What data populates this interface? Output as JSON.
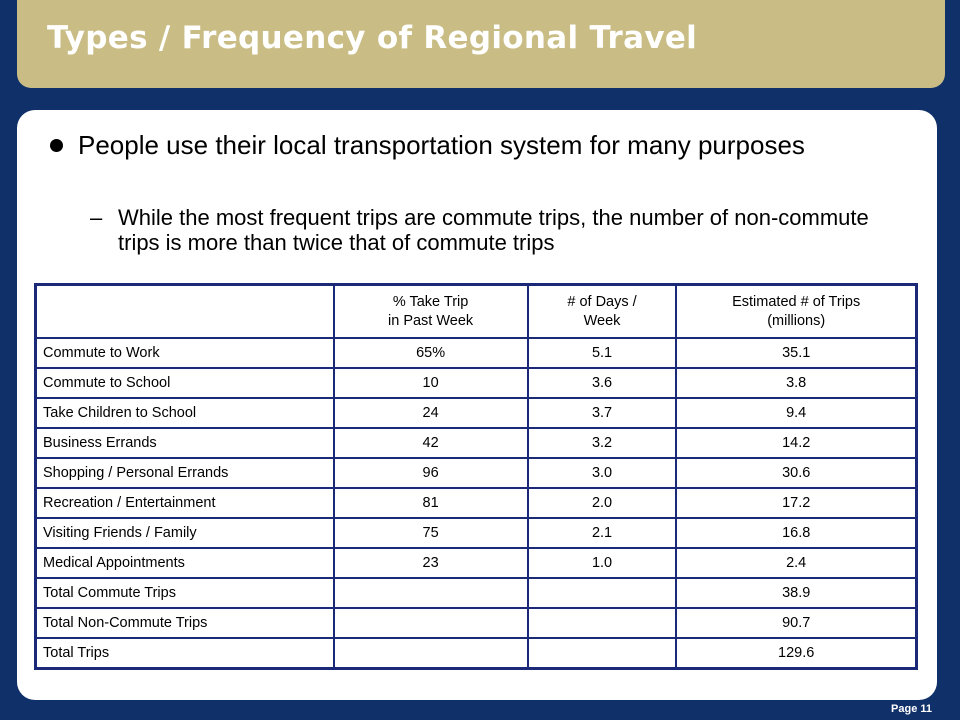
{
  "slide": {
    "title": "Types / Frequency of Regional Travel",
    "bullet": "People use their local transportation system for many purposes",
    "sub_dash": "–",
    "sub_bullet": "While the most frequent trips are commute trips, the number of non-commute trips is more than twice that of commute trips",
    "page": "Page 11"
  },
  "table": {
    "headers": [
      "",
      "% Take Trip\nin Past Week",
      "# of Days /\nWeek",
      "Estimated # of Trips\n(millions)"
    ],
    "rows": [
      [
        "Commute to Work",
        "65%",
        "5.1",
        "35.1"
      ],
      [
        "Commute to School",
        "10",
        "3.6",
        "3.8"
      ],
      [
        "Take Children to School",
        "24",
        "3.7",
        "9.4"
      ],
      [
        "Business Errands",
        "42",
        "3.2",
        "14.2"
      ],
      [
        "Shopping / Personal Errands",
        "96",
        "3.0",
        "30.6"
      ],
      [
        "Recreation / Entertainment",
        "81",
        "2.0",
        "17.2"
      ],
      [
        "Visiting Friends / Family",
        "75",
        "2.1",
        "16.8"
      ],
      [
        "Medical Appointments",
        "23",
        "1.0",
        "2.4"
      ],
      [
        "Total Commute Trips",
        "",
        "",
        "38.9"
      ],
      [
        "Total Non-Commute Trips",
        "",
        "",
        "90.7"
      ],
      [
        "Total Trips",
        "",
        "",
        "129.6"
      ]
    ]
  },
  "colors": {
    "background": "#10306a",
    "title_bar": "#c9bd85",
    "table_border": "#1a2a78"
  }
}
